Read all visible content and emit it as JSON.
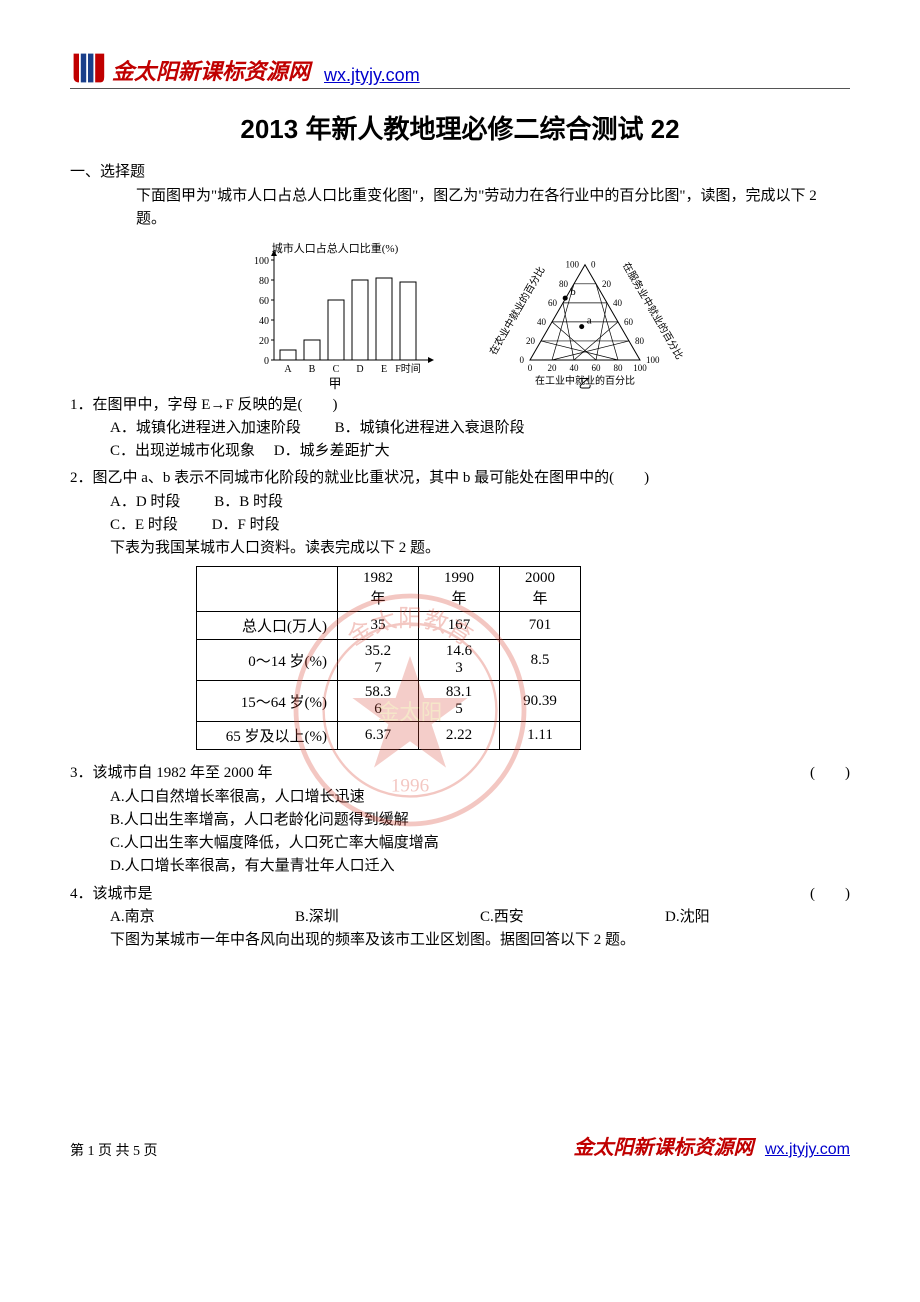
{
  "header": {
    "site_name": "金太阳新课标资源网",
    "url": "wx.jtyjy.com",
    "logo_colors": {
      "red": "#c00000",
      "blue": "#1a3f8a"
    }
  },
  "title": "2013 年新人教地理必修二综合测试 22",
  "section1": "一、选择题",
  "intro": "下面图甲为\"城市人口占总人口比重变化图\"，图乙为\"劳动力在各行业中的百分比图\"，读图，完成以下 2 题。",
  "chart1": {
    "type": "bar",
    "title": "城市人口占总人口比重(%)",
    "categories": [
      "A",
      "B",
      "C",
      "D",
      "E",
      "F时间"
    ],
    "values": [
      10,
      20,
      60,
      80,
      82,
      78
    ],
    "ylim": [
      0,
      100
    ],
    "yticks": [
      0,
      20,
      40,
      60,
      80,
      100
    ],
    "bar_color": "#ffffff",
    "bar_stroke": "#000000",
    "axis_color": "#000000",
    "caption": "甲",
    "fontsize": 11
  },
  "chart2": {
    "type": "ternary",
    "axis_left": "在农业中就业的百分比",
    "axis_right": "在服务业中就业的百分比",
    "axis_bottom": "在工业中就业的百分比",
    "ticks": [
      0,
      20,
      40,
      60,
      80,
      100
    ],
    "points": {
      "a": {
        "label": "a",
        "x_approx": 45,
        "y_approx": 35
      },
      "b": {
        "label": "b",
        "x_approx": 20,
        "y_approx": 65
      }
    },
    "caption": "乙",
    "line_color": "#000000",
    "fontsize": 11
  },
  "q1": {
    "stem": "1．在图甲中，字母 E→F 反映的是(　　)",
    "optA": "A．城镇化进程进入加速阶段",
    "optB": "B．城镇化进程进入衰退阶段",
    "optC": "C．出现逆城市化现象",
    "optD": "D．城乡差距扩大"
  },
  "q2": {
    "stem": "2．图乙中 a、b 表示不同城市化阶段的就业比重状况，其中 b 最可能处在图甲中的(　　)",
    "optA": "A．D 时段",
    "optB": "B．B 时段",
    "optC": "C．E 时段",
    "optD": "D．F 时段"
  },
  "table_intro": "下表为我国某城市人口资料。读表完成以下 2 题。",
  "table": {
    "columns": [
      "",
      "1982年",
      "1990年",
      "2000年"
    ],
    "rows": [
      [
        "总人口(万人)",
        "35",
        "167",
        "701"
      ],
      [
        "0～14 岁(%)",
        "35.27",
        "14.63",
        "8.5"
      ],
      [
        "15～64 岁(%)",
        "58.36",
        "83.15",
        "90.39"
      ],
      [
        "65 岁及以上(%)",
        "6.37",
        "2.22",
        "1.11"
      ]
    ]
  },
  "q3": {
    "stem": "3．该城市自 1982 年至 2000 年",
    "paren": "(　　)",
    "optA": "A.人口自然增长率很高，人口增长迅速",
    "optB": "B.人口出生率增高，人口老龄化问题得到缓解",
    "optC": "C.人口出生率大幅度降低，人口死亡率大幅度增高",
    "optD": "D.人口增长率很高，有大量青壮年人口迁入"
  },
  "q4": {
    "stem": "4．该城市是",
    "paren": "(　　)",
    "optA": "A.南京",
    "optB": "B.深圳",
    "optC": "C.西安",
    "optD": "D.沈阳"
  },
  "next_intro": "下图为某城市一年中各风向出现的频率及该市工业区划图。据图回答以下 2 题。",
  "watermark": {
    "outer_text": "金太阳教育",
    "inner_text": "金太阳",
    "year": "1996",
    "color_red": "#d94a3a",
    "color_gold": "#e0b050"
  },
  "footer": {
    "page_label": "第 1 页 共 5 页",
    "site_name": "金太阳新课标资源网",
    "url": "wx.jtyjy.com"
  }
}
